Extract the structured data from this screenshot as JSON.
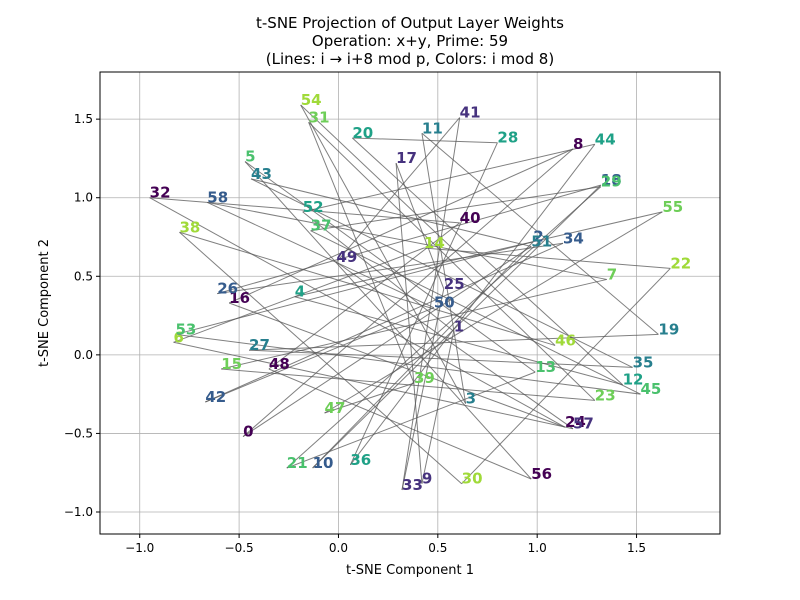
{
  "chart_data": {
    "type": "scatter",
    "title": [
      "t-SNE Projection of Output Layer Weights",
      "Operation: x+y, Prime: 59",
      "(Lines: i → i+8 mod p, Colors: i mod 8)"
    ],
    "xlabel": "t-SNE Component 1",
    "ylabel": "t-SNE Component 2",
    "xlim": [
      -1.2,
      1.92
    ],
    "ylim": [
      -1.14,
      1.8
    ],
    "xticks": [
      -1.0,
      -0.5,
      0.0,
      0.5,
      1.0,
      1.5
    ],
    "xtick_labels": [
      "−1.0",
      "−0.5",
      "0.0",
      "0.5",
      "1.0",
      "1.5"
    ],
    "yticks": [
      -1.0,
      -0.5,
      0.0,
      0.5,
      1.0,
      1.5
    ],
    "ytick_labels": [
      "−1.0",
      "−0.5",
      "0.0",
      "0.5",
      "1.0",
      "1.5"
    ],
    "grid": true,
    "prime": 59,
    "line_step": 8,
    "color_classes": [
      "#440154",
      "#46327e",
      "#365c8d",
      "#277f8e",
      "#1fa187",
      "#4ac16d",
      "#a0da39",
      "#6ece58"
    ],
    "line_color": "#555555",
    "points": [
      {
        "label": "0",
        "x": -0.48,
        "y": -0.52
      },
      {
        "label": "1",
        "x": 0.58,
        "y": 0.15
      },
      {
        "label": "2",
        "x": 0.98,
        "y": 0.72
      },
      {
        "label": "3",
        "x": 0.64,
        "y": -0.31
      },
      {
        "label": "4",
        "x": -0.22,
        "y": 0.37
      },
      {
        "label": "5",
        "x": -0.47,
        "y": 1.23
      },
      {
        "label": "6",
        "x": -0.83,
        "y": 0.08
      },
      {
        "label": "7",
        "x": 1.35,
        "y": 0.48
      },
      {
        "label": "8",
        "x": 1.18,
        "y": 1.31
      },
      {
        "label": "9",
        "x": 0.42,
        "y": -0.82
      },
      {
        "label": "10",
        "x": -0.13,
        "y": -0.72
      },
      {
        "label": "11",
        "x": 0.42,
        "y": 1.41
      },
      {
        "label": "12",
        "x": 1.43,
        "y": -0.19
      },
      {
        "label": "13",
        "x": 0.99,
        "y": -0.11
      },
      {
        "label": "14",
        "x": 0.43,
        "y": 0.68
      },
      {
        "label": "15",
        "x": -0.59,
        "y": -0.09
      },
      {
        "label": "16",
        "x": -0.55,
        "y": 0.33
      },
      {
        "label": "17",
        "x": 0.29,
        "y": 1.22
      },
      {
        "label": "18",
        "x": 1.32,
        "y": 1.08
      },
      {
        "label": "19",
        "x": 1.61,
        "y": 0.13
      },
      {
        "label": "20",
        "x": 0.07,
        "y": 1.38
      },
      {
        "label": "21",
        "x": -0.26,
        "y": -0.72
      },
      {
        "label": "22",
        "x": 1.67,
        "y": 0.55
      },
      {
        "label": "23",
        "x": 1.29,
        "y": -0.29
      },
      {
        "label": "24",
        "x": 1.14,
        "y": -0.46
      },
      {
        "label": "25",
        "x": 0.53,
        "y": 0.42
      },
      {
        "label": "26",
        "x": -0.61,
        "y": 0.39
      },
      {
        "label": "27",
        "x": -0.45,
        "y": 0.03
      },
      {
        "label": "28",
        "x": 0.8,
        "y": 1.35
      },
      {
        "label": "29",
        "x": 1.32,
        "y": 1.07
      },
      {
        "label": "30",
        "x": 0.62,
        "y": -0.82
      },
      {
        "label": "31",
        "x": -0.15,
        "y": 1.48
      },
      {
        "label": "32",
        "x": -0.95,
        "y": 1.0
      },
      {
        "label": "33",
        "x": 0.32,
        "y": -0.86
      },
      {
        "label": "34",
        "x": 1.13,
        "y": 0.71
      },
      {
        "label": "35",
        "x": 1.48,
        "y": -0.08
      },
      {
        "label": "36",
        "x": 0.06,
        "y": -0.7
      },
      {
        "label": "37",
        "x": -0.14,
        "y": 0.79
      },
      {
        "label": "38",
        "x": -0.8,
        "y": 0.78
      },
      {
        "label": "39",
        "x": 0.38,
        "y": -0.18
      },
      {
        "label": "40",
        "x": 0.61,
        "y": 0.84
      },
      {
        "label": "41",
        "x": 0.61,
        "y": 1.51
      },
      {
        "label": "42",
        "x": -0.67,
        "y": -0.3
      },
      {
        "label": "43",
        "x": -0.44,
        "y": 1.12
      },
      {
        "label": "44",
        "x": 1.29,
        "y": 1.34
      },
      {
        "label": "45",
        "x": 1.52,
        "y": -0.25
      },
      {
        "label": "46",
        "x": 1.09,
        "y": 0.06
      },
      {
        "label": "47",
        "x": -0.07,
        "y": -0.37
      },
      {
        "label": "48",
        "x": -0.35,
        "y": -0.09
      },
      {
        "label": "49",
        "x": -0.01,
        "y": 0.59
      },
      {
        "label": "50",
        "x": 0.48,
        "y": 0.3
      },
      {
        "label": "51",
        "x": 0.97,
        "y": 0.69
      },
      {
        "label": "52",
        "x": -0.18,
        "y": 0.91
      },
      {
        "label": "53",
        "x": -0.82,
        "y": 0.13
      },
      {
        "label": "54",
        "x": -0.19,
        "y": 1.59
      },
      {
        "label": "55",
        "x": 1.63,
        "y": 0.91
      },
      {
        "label": "56",
        "x": 0.97,
        "y": -0.79
      },
      {
        "label": "57",
        "x": 1.18,
        "y": -0.47
      },
      {
        "label": "58",
        "x": -0.66,
        "y": 0.97
      }
    ]
  }
}
